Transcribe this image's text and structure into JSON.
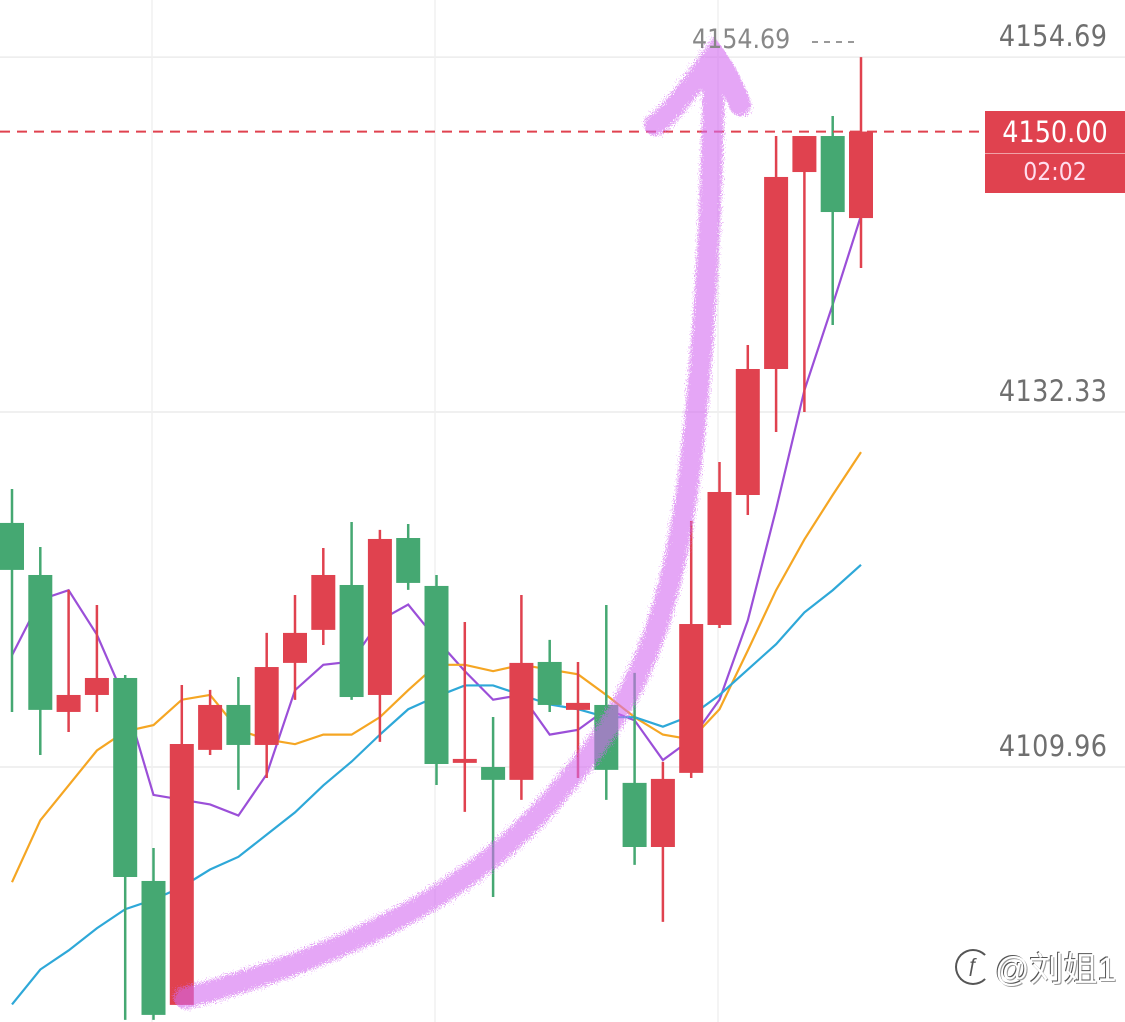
{
  "chart_data": {
    "type": "candlestick",
    "title": "",
    "ylim": [
      4090.0,
      4157.0
    ],
    "y_ticks": [
      "4154.69",
      "4132.33",
      "4109.96"
    ],
    "y_tick_values": [
      4154.69,
      4132.33,
      4109.96
    ],
    "grid": true,
    "up_color": "#e0424f",
    "down_color": "#45a872",
    "last_price": 4150.0,
    "last_price_label": "4150.00",
    "countdown": "02:02",
    "high_label": "4154.69",
    "high_marker": "----",
    "candles": [
      {
        "o": 4125.34,
        "h": 4127.48,
        "l": 4113.43,
        "c": 4122.38
      },
      {
        "o": 4122.06,
        "h": 4123.82,
        "l": 4110.72,
        "c": 4113.56
      },
      {
        "o": 4113.43,
        "h": 4121.12,
        "l": 4112.17,
        "c": 4114.5
      },
      {
        "o": 4114.5,
        "h": 4120.17,
        "l": 4113.43,
        "c": 4115.57
      },
      {
        "o": 4115.57,
        "h": 4115.76,
        "l": 4094.03,
        "c": 4103.03
      },
      {
        "o": 4102.78,
        "h": 4104.86,
        "l": 4094.03,
        "c": 4094.34
      },
      {
        "o": 4094.97,
        "h": 4115.13,
        "l": 4094.97,
        "c": 4111.41
      },
      {
        "o": 4111.04,
        "h": 4114.82,
        "l": 4110.72,
        "c": 4113.87
      },
      {
        "o": 4113.87,
        "h": 4115.63,
        "l": 4108.52,
        "c": 4111.35
      },
      {
        "o": 4111.35,
        "h": 4118.41,
        "l": 4109.27,
        "c": 4116.26
      },
      {
        "o": 4116.52,
        "h": 4120.8,
        "l": 4114.19,
        "c": 4118.41
      },
      {
        "o": 4118.6,
        "h": 4123.76,
        "l": 4117.65,
        "c": 4122.06
      },
      {
        "o": 4121.43,
        "h": 4125.4,
        "l": 4114.19,
        "c": 4114.37
      },
      {
        "o": 4114.5,
        "h": 4124.9,
        "l": 4111.54,
        "c": 4124.33
      },
      {
        "o": 4124.39,
        "h": 4125.27,
        "l": 4121.12,
        "c": 4121.56
      },
      {
        "o": 4121.37,
        "h": 4122.06,
        "l": 4108.83,
        "c": 4110.15
      },
      {
        "o": 4110.22,
        "h": 4119.1,
        "l": 4107.13,
        "c": 4110.47
      },
      {
        "o": 4109.96,
        "h": 4113.11,
        "l": 4101.77,
        "c": 4109.15
      },
      {
        "o": 4109.15,
        "h": 4120.8,
        "l": 4107.89,
        "c": 4116.52
      },
      {
        "o": 4116.58,
        "h": 4117.97,
        "l": 4113.43,
        "c": 4113.87
      },
      {
        "o": 4113.56,
        "h": 4116.58,
        "l": 4109.27,
        "c": 4114.0
      },
      {
        "o": 4113.87,
        "h": 4120.17,
        "l": 4107.89,
        "c": 4109.78
      },
      {
        "o": 4108.96,
        "h": 4115.89,
        "l": 4103.79,
        "c": 4104.92
      },
      {
        "o": 4104.92,
        "h": 4110.28,
        "l": 4100.2,
        "c": 4109.21
      },
      {
        "o": 4109.59,
        "h": 4125.46,
        "l": 4109.27,
        "c": 4118.97
      },
      {
        "o": 4118.91,
        "h": 4129.18,
        "l": 4118.72,
        "c": 4127.29
      },
      {
        "o": 4127.1,
        "h": 4136.55,
        "l": 4125.84,
        "c": 4135.04
      },
      {
        "o": 4135.04,
        "h": 4149.72,
        "l": 4131.07,
        "c": 4147.14
      },
      {
        "o": 4147.45,
        "h": 4149.72,
        "l": 4132.33,
        "c": 4149.72
      },
      {
        "o": 4149.72,
        "h": 4150.98,
        "l": 4137.81,
        "c": 4144.93
      },
      {
        "o": 4144.55,
        "h": 4154.69,
        "l": 4141.4,
        "c": 4150.0
      }
    ],
    "series": [
      {
        "name": "MA-purple",
        "color": "#9b4fd8",
        "values": [
          4117.0,
          4120.5,
          4121.1,
          4118.3,
          4114.2,
          4108.2,
          4107.9,
          4107.6,
          4106.9,
          4109.5,
          4114.8,
          4116.4,
          4116.6,
          4119.2,
          4120.2,
          4118.0,
          4116.0,
          4114.2,
          4114.5,
          4112.0,
          4112.3,
          4113.6,
          4112.9,
          4110.4,
          4111.7,
          4114.2,
          4119.2,
          4126.2,
          4133.7,
          4139.1,
          4144.7
        ]
      },
      {
        "name": "MA-orange",
        "color": "#f5a623",
        "values": [
          4102.7,
          4106.6,
          4108.8,
          4111.0,
          4112.2,
          4112.6,
          4114.2,
          4114.5,
          4112.3,
          4111.7,
          4111.4,
          4112.0,
          4112.0,
          4113.1,
          4114.8,
          4116.4,
          4116.4,
          4116.0,
          4116.4,
          4116.1,
          4115.8,
          4114.5,
          4113.1,
          4112.0,
          4111.7,
          4113.6,
          4117.3,
          4121.1,
          4124.3,
          4127.1,
          4129.8
        ]
      },
      {
        "name": "MA-blue",
        "color": "#2ea8d8",
        "values": [
          4095.0,
          4097.2,
          4098.4,
          4099.8,
          4101.0,
          4101.6,
          4102.4,
          4103.5,
          4104.3,
          4105.7,
          4107.1,
          4108.8,
          4110.3,
          4112.0,
          4113.6,
          4114.4,
          4115.1,
          4115.1,
          4114.5,
          4113.9,
          4113.6,
          4113.1,
          4113.1,
          4112.5,
          4113.2,
          4114.5,
          4116.1,
          4117.7,
          4119.7,
          4121.1,
          4122.7
        ]
      }
    ]
  },
  "watermark": {
    "icon": "weibo-icon",
    "text": "@刘姐1"
  }
}
